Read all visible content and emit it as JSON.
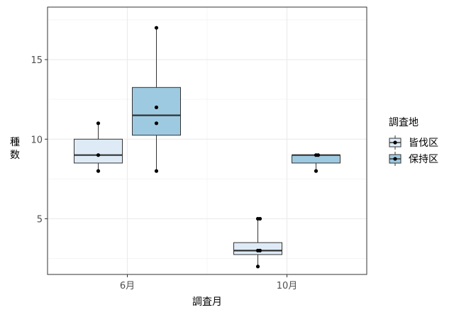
{
  "chart_data": {
    "type": "box",
    "xlabel": "調査月",
    "ylabel": "種数",
    "categories": [
      "6月",
      "10月"
    ],
    "yticks": [
      5,
      10,
      15
    ],
    "ylim": [
      1.5,
      18.3
    ],
    "grid": true,
    "legend": {
      "title": "調査地",
      "position": "right"
    },
    "colors": {
      "background": "#ffffff",
      "grid_major": "#ebebeb",
      "grid_minor": "#f5f5f5",
      "panel_border": "#333333",
      "box_stroke": "#333333",
      "point": "#000000"
    },
    "series": [
      {
        "name": "皆伐区",
        "color": "#deebf7",
        "boxes": [
          {
            "category": "6月",
            "min": 8,
            "q1": 8.5,
            "median": 9,
            "q3": 10,
            "max": 11,
            "points": [
              8,
              9,
              11
            ]
          },
          {
            "category": "10月",
            "min": 2,
            "q1": 2.75,
            "median": 3,
            "q3": 3.5,
            "max": 5,
            "points": [
              2,
              3,
              3,
              5,
              5
            ]
          }
        ]
      },
      {
        "name": "保持区",
        "color": "#9ecae1",
        "boxes": [
          {
            "category": "6月",
            "min": 8,
            "q1": 10.25,
            "median": 11.5,
            "q3": 13.25,
            "max": 17,
            "points": [
              8,
              11,
              12,
              17
            ]
          },
          {
            "category": "10月",
            "min": 8,
            "q1": 8.5,
            "median": 9,
            "q3": 9,
            "max": 9,
            "points": [
              8,
              9,
              9
            ]
          }
        ]
      }
    ]
  }
}
